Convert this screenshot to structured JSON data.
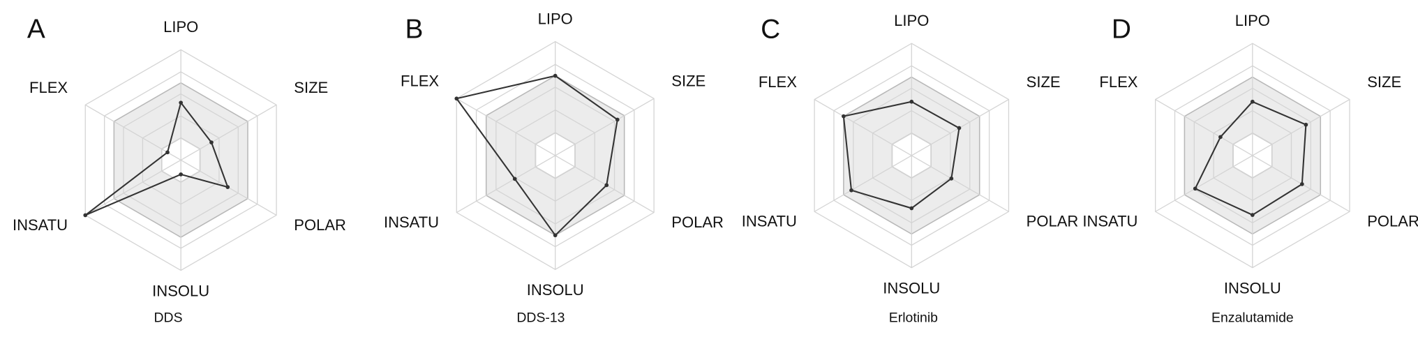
{
  "chart_data": [
    {
      "type": "radar",
      "label": "A",
      "title": "DDS",
      "categories": [
        "LIPO",
        "SIZE",
        "POLAR",
        "INSOLU",
        "INSATU",
        "FLEX"
      ],
      "values": [
        0.52,
        0.32,
        0.49,
        0.13,
        1.0,
        0.14
      ],
      "rlim": [
        0,
        1
      ],
      "rticks": [
        0.2,
        0.4,
        0.6,
        0.8,
        1
      ],
      "shaded_range": [
        0.2,
        0.7
      ],
      "color": "#333333",
      "grid": true
    },
    {
      "type": "radar",
      "label": "B",
      "title": "DDS-13",
      "categories": [
        "LIPO",
        "SIZE",
        "POLAR",
        "INSOLU",
        "INSATU",
        "FLEX"
      ],
      "values": [
        0.7,
        0.63,
        0.52,
        0.7,
        0.41,
        1.0
      ],
      "rlim": [
        0,
        1
      ],
      "rticks": [
        0.2,
        0.4,
        0.6,
        0.8,
        1
      ],
      "shaded_range": [
        0.2,
        0.7
      ],
      "color": "#333333",
      "grid": true
    },
    {
      "type": "radar",
      "label": "C",
      "title": "Erlotinib",
      "categories": [
        "LIPO",
        "SIZE",
        "POLAR",
        "INSOLU",
        "INSATU",
        "FLEX"
      ],
      "values": [
        0.48,
        0.49,
        0.41,
        0.47,
        0.62,
        0.7
      ],
      "rlim": [
        0,
        1
      ],
      "rticks": [
        0.2,
        0.4,
        0.6,
        0.8,
        1
      ],
      "shaded_range": [
        0.2,
        0.7
      ],
      "color": "#333333",
      "grid": true
    },
    {
      "type": "radar",
      "label": "D",
      "title": "Enzalutamide",
      "categories": [
        "LIPO",
        "SIZE",
        "POLAR",
        "INSOLU",
        "INSATU",
        "FLEX"
      ],
      "values": [
        0.48,
        0.55,
        0.51,
        0.53,
        0.59,
        0.33
      ],
      "rlim": [
        0,
        1
      ],
      "rticks": [
        0.2,
        0.4,
        0.6,
        0.8,
        1
      ],
      "shaded_range": [
        0.2,
        0.7
      ],
      "color": "#333333",
      "grid": true
    }
  ]
}
